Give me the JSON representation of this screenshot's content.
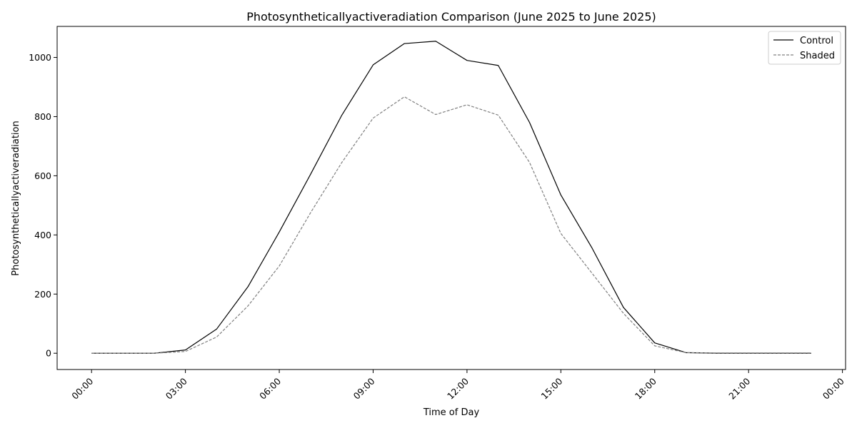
{
  "chart_data": {
    "type": "line",
    "title": "Photosyntheticallyactiveradiation Comparison (June 2025 to June 2025)",
    "xlabel": "Time of Day",
    "ylabel": "Photosyntheticallyactiveradiation",
    "x": [
      0,
      1,
      2,
      3,
      4,
      5,
      6,
      7,
      8,
      9,
      10,
      11,
      12,
      13,
      14,
      15,
      16,
      17,
      18,
      19,
      20,
      21,
      22,
      23
    ],
    "xlim": [
      -1.1,
      24.1
    ],
    "ylim": [
      -55,
      1105
    ],
    "xticks": [
      0,
      3,
      6,
      9,
      12,
      15,
      18,
      21,
      24
    ],
    "xtick_labels": [
      "00:00",
      "03:00",
      "06:00",
      "09:00",
      "12:00",
      "15:00",
      "18:00",
      "21:00",
      "00:00"
    ],
    "yticks": [
      0,
      200,
      400,
      600,
      800,
      1000
    ],
    "ytick_labels": [
      "0",
      "200",
      "400",
      "600",
      "800",
      "1000"
    ],
    "grid": false,
    "legend_position": "top-right",
    "series": [
      {
        "name": "Control",
        "color": "#000000",
        "dash": "solid",
        "values": [
          0,
          0,
          0,
          11,
          82,
          225,
          410,
          605,
          805,
          975,
          1047,
          1055,
          990,
          973,
          780,
          535,
          355,
          155,
          35,
          2,
          0,
          0,
          0,
          0
        ]
      },
      {
        "name": "Shaded",
        "color": "#808080",
        "dash": "dashed",
        "values": [
          0,
          0,
          0,
          6,
          55,
          160,
          295,
          475,
          645,
          795,
          867,
          807,
          840,
          805,
          645,
          405,
          270,
          135,
          25,
          2,
          1,
          1,
          1,
          1
        ]
      }
    ]
  }
}
